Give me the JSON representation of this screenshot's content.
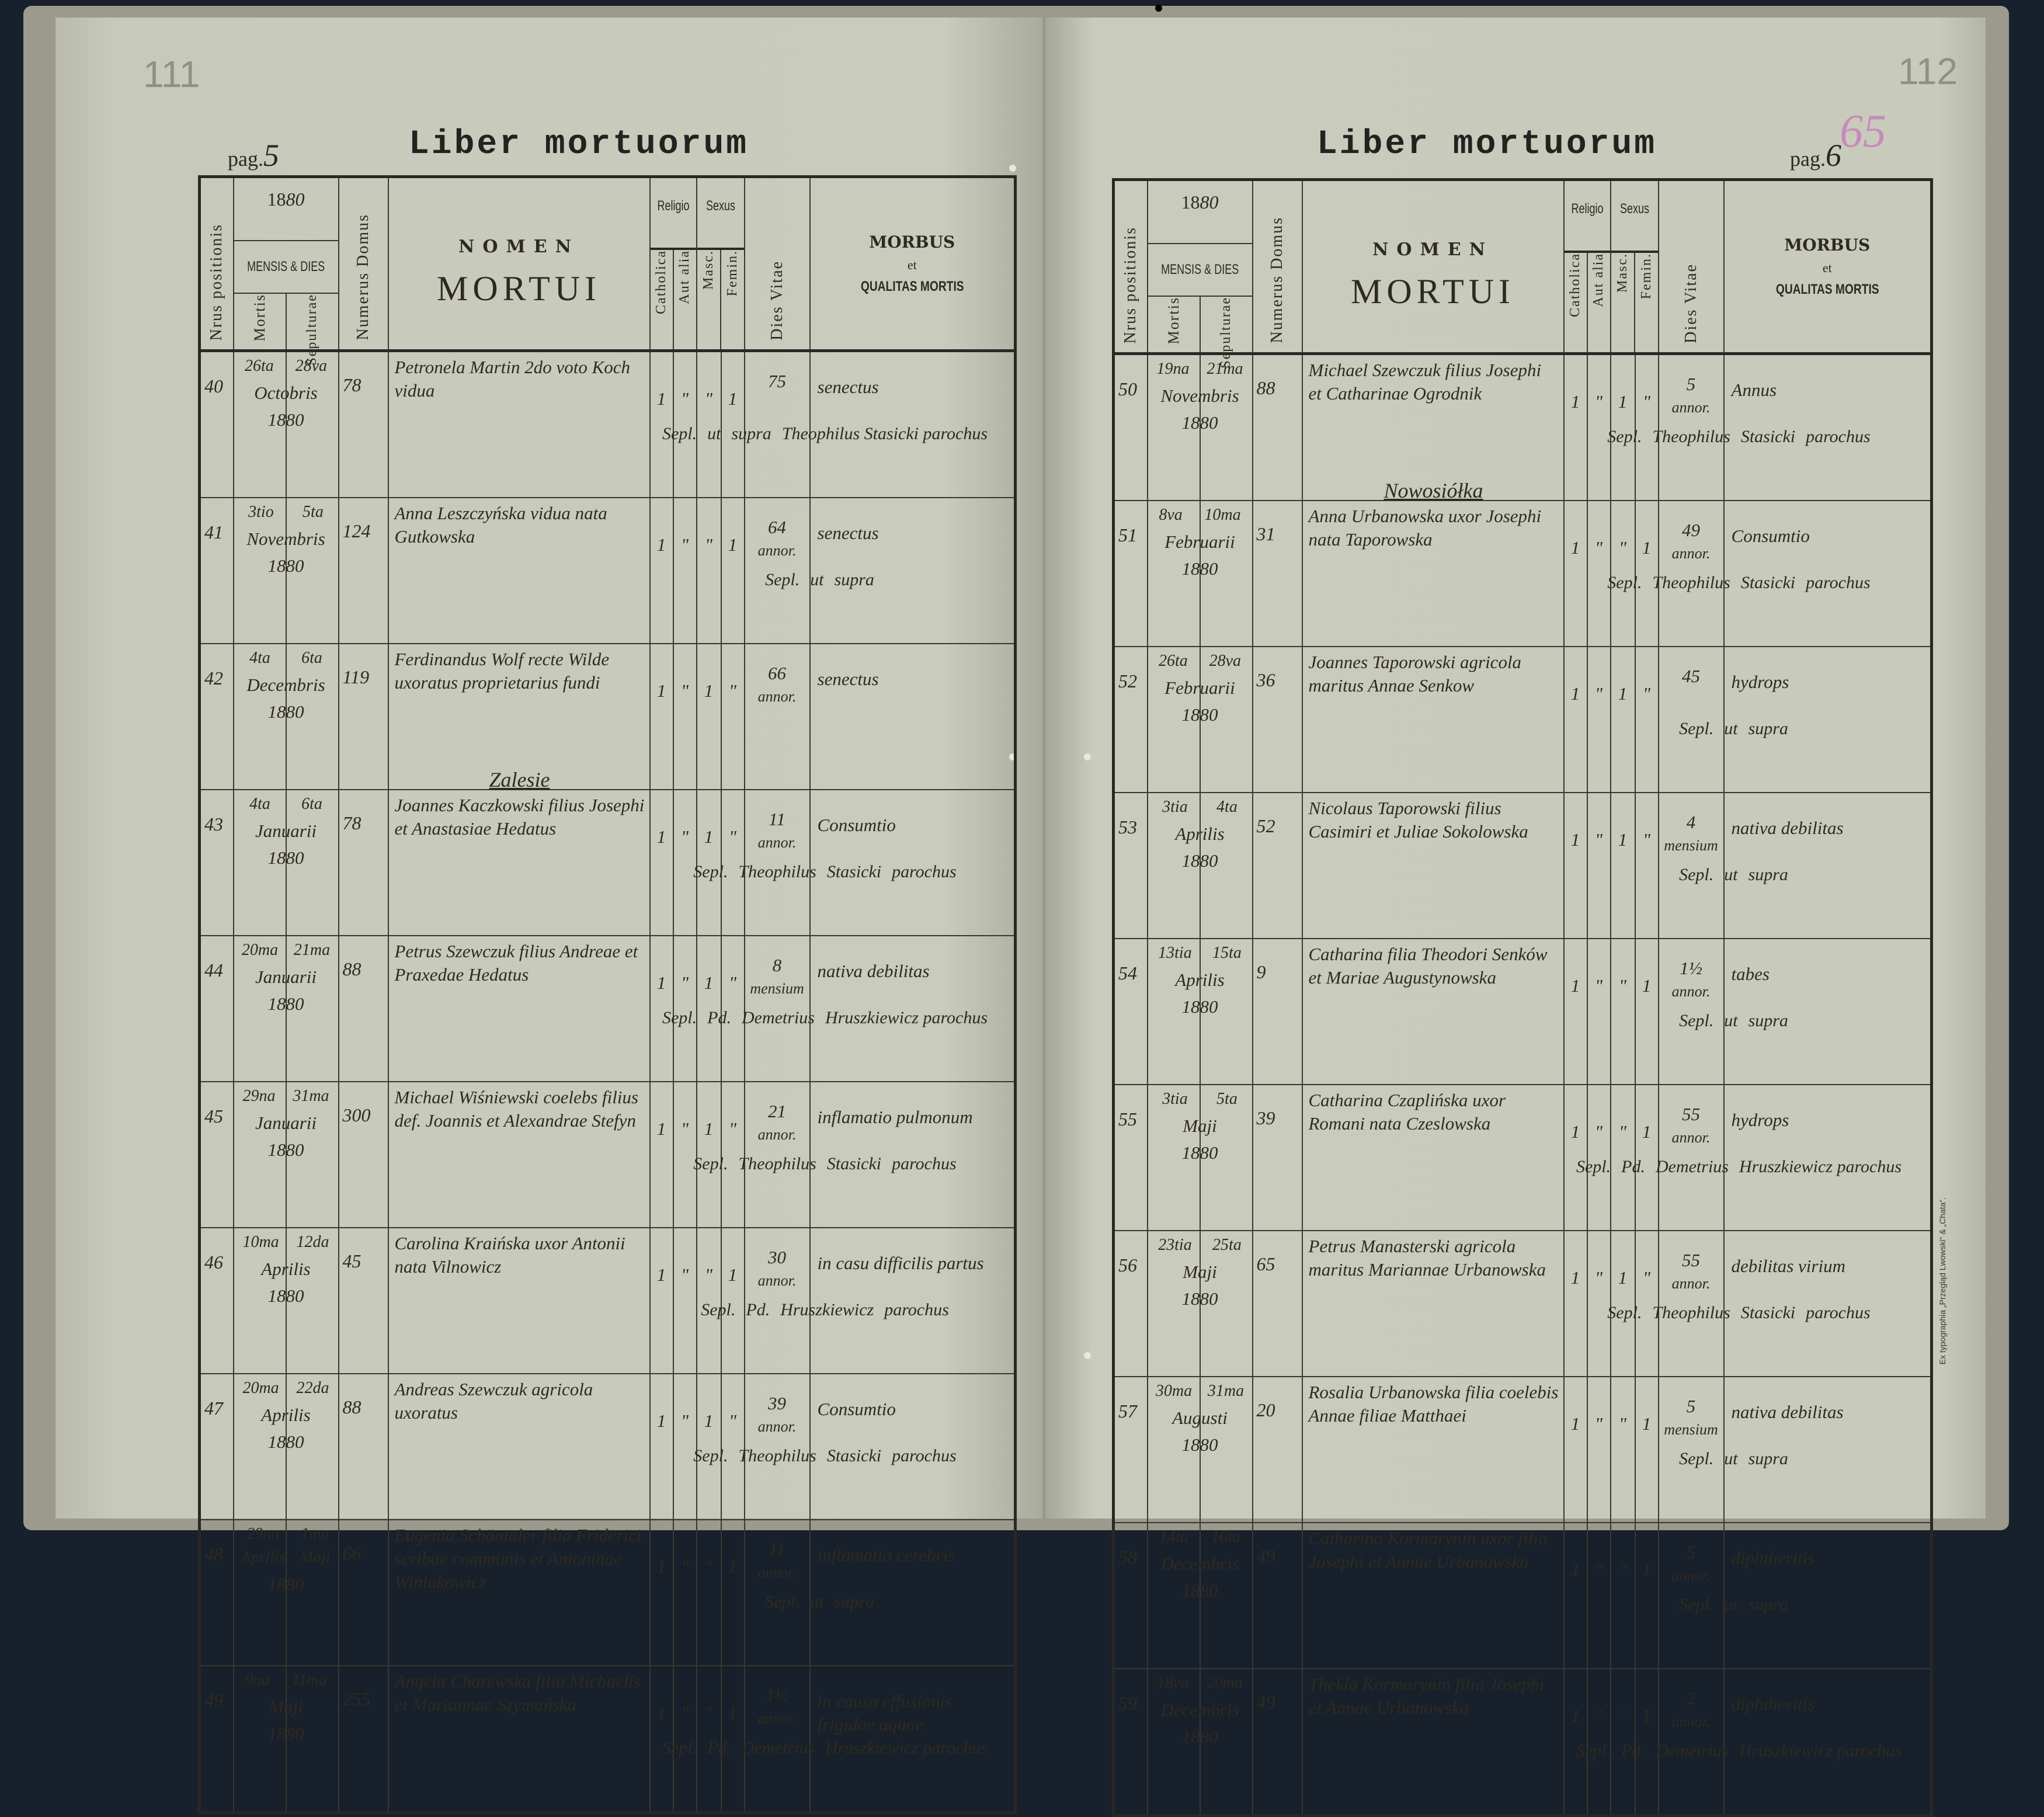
{
  "left_page": {
    "pencil_number": "111",
    "pag_label": "pag.",
    "pag_number": "5",
    "title": "Liber mortuorum"
  },
  "right_page": {
    "pencil_number": "112",
    "stamp_number": "65",
    "pag_label": "pag.",
    "pag_number": "6",
    "title": "Liber mortuorum",
    "imprint": "Ex typographia „Przegląd Lwowski“ & „Chata“."
  },
  "headers": {
    "nrus": "Nrus positionis",
    "year_print": "18",
    "year_hand": "80",
    "mensis_dies": "MENSIS & DIES",
    "mortis": "Mortis",
    "sepulturae": "Sepulturae",
    "numerus_domus": "Numerus Domus",
    "nomen": "NOMEN",
    "mortui": "MORTUI",
    "religio": "Religio",
    "catholica": "Catholica",
    "aut_alia": "Aut alia",
    "sexus": "Sexus",
    "masc": "Masc.",
    "femin": "Femin.",
    "dies_vitae": "Dies Vitae",
    "morbus": "MORBUS",
    "et": "et",
    "qualitas": "QUALITAS MORTIS"
  },
  "left_entries": [
    {
      "nr": "40",
      "day_mortis": "26ta",
      "day_sep": "28va",
      "month": "Octobris",
      "year": "1880",
      "domus": "78",
      "name": "Petronela Martin 2do voto Koch vidua",
      "cath": "1",
      "alia": "\"",
      "masc": "\"",
      "fem": "1",
      "age": "75",
      "unit": "",
      "morbus": "senectus",
      "burial": [
        "Sepl.",
        "ut",
        "supra",
        "Theophilus Stasicki parochus"
      ]
    },
    {
      "nr": "41",
      "day_mortis": "3tio",
      "day_sep": "5ta",
      "month": "Novembris",
      "year": "1880",
      "domus": "124",
      "name": "Anna Leszczyńska vidua nata Gutkowska",
      "cath": "1",
      "alia": "\"",
      "masc": "\"",
      "fem": "1",
      "age": "64",
      "unit": "annor.",
      "morbus": "senectus",
      "burial": [
        "Sepl.",
        "ut",
        "supra",
        ""
      ]
    },
    {
      "nr": "42",
      "day_mortis": "4ta",
      "day_sep": "6ta",
      "month": "Decembris",
      "year": "1880",
      "domus": "119",
      "name": "Ferdinandus Wolf recte Wilde uxoratus proprietarius fundi",
      "cath": "1",
      "alia": "\"",
      "masc": "1",
      "fem": "\"",
      "age": "66",
      "unit": "annor.",
      "morbus": "senectus",
      "burial": [
        "",
        "",
        "",
        ""
      ]
    },
    {
      "section": "Zalesie",
      "nr": "43",
      "day_mortis": "4ta",
      "day_sep": "6ta",
      "month": "Januarii",
      "year": "1880",
      "domus": "78",
      "name": "Joannes Kaczkowski filius Josephi et Anastasiae Hedatus",
      "cath": "1",
      "alia": "\"",
      "masc": "1",
      "fem": "\"",
      "age": "11",
      "unit": "annor.",
      "morbus": "Consumtio",
      "burial": [
        "Sepl.",
        "Theophilus",
        "Stasicki",
        "parochus"
      ]
    },
    {
      "nr": "44",
      "day_mortis": "20ma",
      "day_sep": "21ma",
      "month": "Januarii",
      "year": "1880",
      "domus": "88",
      "name": "Petrus Szewczuk filius Andreae et Praxedae Hedatus",
      "cath": "1",
      "alia": "\"",
      "masc": "1",
      "fem": "\"",
      "age": "8",
      "unit": "mensium",
      "morbus": "nativa debilitas",
      "burial": [
        "Sepl.",
        "Pd.",
        "Demetrius",
        "Hruszkiewicz parochus"
      ]
    },
    {
      "nr": "45",
      "day_mortis": "29na",
      "day_sep": "31ma",
      "month": "Januarii",
      "year": "1880",
      "domus": "300",
      "name": "Michael Wiśniewski coelebs filius def. Joannis et Alexandrae Stefyn",
      "cath": "1",
      "alia": "\"",
      "masc": "1",
      "fem": "\"",
      "age": "21",
      "unit": "annor.",
      "morbus": "inflamatio pulmonum",
      "burial": [
        "Sepl.",
        "Theophilus",
        "Stasicki",
        "parochus"
      ]
    },
    {
      "nr": "46",
      "day_mortis": "10ma",
      "day_sep": "12da",
      "month": "Aprilis",
      "year": "1880",
      "domus": "45",
      "name": "Carolina Kraińska uxor Antonii nata Vilnowicz",
      "cath": "1",
      "alia": "\"",
      "masc": "\"",
      "fem": "1",
      "age": "30",
      "unit": "annor.",
      "morbus": "in casu difficilis partus",
      "burial": [
        "Sepl.",
        "Pd.",
        "Hruszkiewicz",
        "parochus"
      ]
    },
    {
      "nr": "47",
      "day_mortis": "20ma",
      "day_sep": "22da",
      "month": "Aprilis",
      "year": "1880",
      "domus": "88",
      "name": "Andreas Szewczuk agricola uxoratus",
      "cath": "1",
      "alia": "\"",
      "masc": "1",
      "fem": "\"",
      "age": "39",
      "unit": "annor.",
      "morbus": "Consumtio",
      "burial": [
        "Sepl.",
        "Theophilus",
        "Stasicki",
        "parochus"
      ]
    },
    {
      "nr": "48",
      "day_mortis": "29na Aprilis",
      "day_sep": "1ma Maji",
      "month": "",
      "year": "1880",
      "domus": "66",
      "name": "Eugenia Schöntaler filia Friderici scribae communis et Antoninae Winiakowicz",
      "cath": "1",
      "alia": "\"",
      "masc": "\"",
      "fem": "1",
      "age": "11",
      "unit": "annor.",
      "morbus": "inflamatio cerebris",
      "burial": [
        "Sepl.",
        "ut",
        "supra",
        ""
      ]
    },
    {
      "nr": "49",
      "day_mortis": "9na",
      "day_sep": "11ma",
      "month": "Maji",
      "year": "1880",
      "domus": "255",
      "name": "Angela Charewska filia Michaelis et Mariannae Szymańska",
      "cath": "1",
      "alia": "\"",
      "masc": "\"",
      "fem": "1",
      "age": "1½",
      "unit": "annor.",
      "morbus": "in causa effusionis frigidae aquae",
      "burial": [
        "Sepl.",
        "Pd.",
        "Demetrius",
        "Hruszkiewicz parochus"
      ]
    }
  ],
  "right_entries": [
    {
      "nr": "50",
      "day_mortis": "19na",
      "day_sep": "21ma",
      "month": "Novembris",
      "year": "1880",
      "domus": "88",
      "name": "Michael Szewczuk filius Josephi et Catharinae Ogrodnik",
      "cath": "1",
      "alia": "\"",
      "masc": "1",
      "fem": "\"",
      "age": "5",
      "unit": "annor.",
      "morbus": "Annus",
      "burial": [
        "Sepl.",
        "Theophilus",
        "Stasicki",
        "parochus"
      ]
    },
    {
      "section": "Nowosiółka",
      "nr": "51",
      "day_mortis": "8va",
      "day_sep": "10ma",
      "month": "Februarii",
      "year": "1880",
      "domus": "31",
      "name": "Anna Urbanowska uxor Josephi nata Taporowska",
      "cath": "1",
      "alia": "\"",
      "masc": "\"",
      "fem": "1",
      "age": "49",
      "unit": "annor.",
      "morbus": "Consumtio",
      "burial": [
        "Sepl.",
        "Theophilus",
        "Stasicki",
        "parochus"
      ]
    },
    {
      "nr": "52",
      "day_mortis": "26ta",
      "day_sep": "28va",
      "month": "Februarii",
      "year": "1880",
      "domus": "36",
      "name": "Joannes Taporowski agricola maritus Annae Senkow",
      "cath": "1",
      "alia": "\"",
      "masc": "1",
      "fem": "\"",
      "age": "45",
      "unit": "",
      "morbus": "hydrops",
      "burial": [
        "Sepl.",
        "ut",
        "supra",
        ""
      ]
    },
    {
      "nr": "53",
      "day_mortis": "3tia",
      "day_sep": "4ta",
      "month": "Aprilis",
      "year": "1880",
      "domus": "52",
      "name": "Nicolaus Taporowski filius Casimiri et Juliae Sokolowska",
      "cath": "1",
      "alia": "\"",
      "masc": "1",
      "fem": "\"",
      "age": "4",
      "unit": "mensium",
      "morbus": "nativa debilitas",
      "burial": [
        "Sepl.",
        "ut",
        "supra",
        ""
      ]
    },
    {
      "nr": "54",
      "day_mortis": "13tia",
      "day_sep": "15ta",
      "month": "Aprilis",
      "year": "1880",
      "domus": "9",
      "name": "Catharina filia Theodori Senków et Mariae Augustynowska",
      "cath": "1",
      "alia": "\"",
      "masc": "\"",
      "fem": "1",
      "age": "1½",
      "unit": "annor.",
      "morbus": "tabes",
      "burial": [
        "Sepl.",
        "ut",
        "supra",
        ""
      ]
    },
    {
      "nr": "55",
      "day_mortis": "3tia",
      "day_sep": "5ta",
      "month": "Maji",
      "year": "1880",
      "domus": "39",
      "name": "Catharina Czaplińska uxor Romani nata Czeslowska",
      "cath": "1",
      "alia": "\"",
      "masc": "\"",
      "fem": "1",
      "age": "55",
      "unit": "annor.",
      "morbus": "hydrops",
      "burial": [
        "Sepl.",
        "Pd.",
        "Demetrius",
        "Hruszkiewicz parochus"
      ]
    },
    {
      "nr": "56",
      "day_mortis": "23tia",
      "day_sep": "25ta",
      "month": "Maji",
      "year": "1880",
      "domus": "65",
      "name": "Petrus Manasterski agricola maritus Mariannae Urbanowska",
      "cath": "1",
      "alia": "\"",
      "masc": "1",
      "fem": "\"",
      "age": "55",
      "unit": "annor.",
      "morbus": "debilitas virium",
      "burial": [
        "Sepl.",
        "Theophilus",
        "Stasicki",
        "parochus"
      ]
    },
    {
      "nr": "57",
      "day_mortis": "30ma",
      "day_sep": "31ma",
      "month": "Augusti",
      "year": "1880",
      "domus": "20",
      "name": "Rosalia Urbanowska filia coelebis Annae filiae Matthaei",
      "cath": "1",
      "alia": "\"",
      "masc": "\"",
      "fem": "1",
      "age": "5",
      "unit": "mensium",
      "morbus": "nativa debilitas",
      "burial": [
        "Sepl.",
        "ut",
        "supra",
        ""
      ]
    },
    {
      "nr": "58",
      "day_mortis": "14ta",
      "day_sep": "16ta",
      "month": "Decembris",
      "year": "1880",
      "domus": "49",
      "name": "Catharina Kormarynin uxor filia Josephi et Annae Urbanowska",
      "cath": "1",
      "alia": "\"",
      "masc": "\"",
      "fem": "1",
      "age": "5",
      "unit": "annor.",
      "morbus": "diphtheritis",
      "burial": [
        "Sepl.",
        "ut",
        "supra",
        ""
      ]
    },
    {
      "nr": "59",
      "day_mortis": "18va",
      "day_sep": "20ma",
      "month": "Decembris",
      "year": "1880",
      "domus": "49",
      "name": "Thekla Kormarynin filia Josephi et Annae Urbanowska",
      "cath": "1",
      "alia": "\"",
      "masc": "\"",
      "fem": "1",
      "age": "2",
      "unit": "annor.",
      "morbus": "diphtheritis",
      "burial": [
        "Sepl.",
        "Pd.",
        "Demetrius",
        "Hruszkiewicz parochus"
      ]
    }
  ]
}
